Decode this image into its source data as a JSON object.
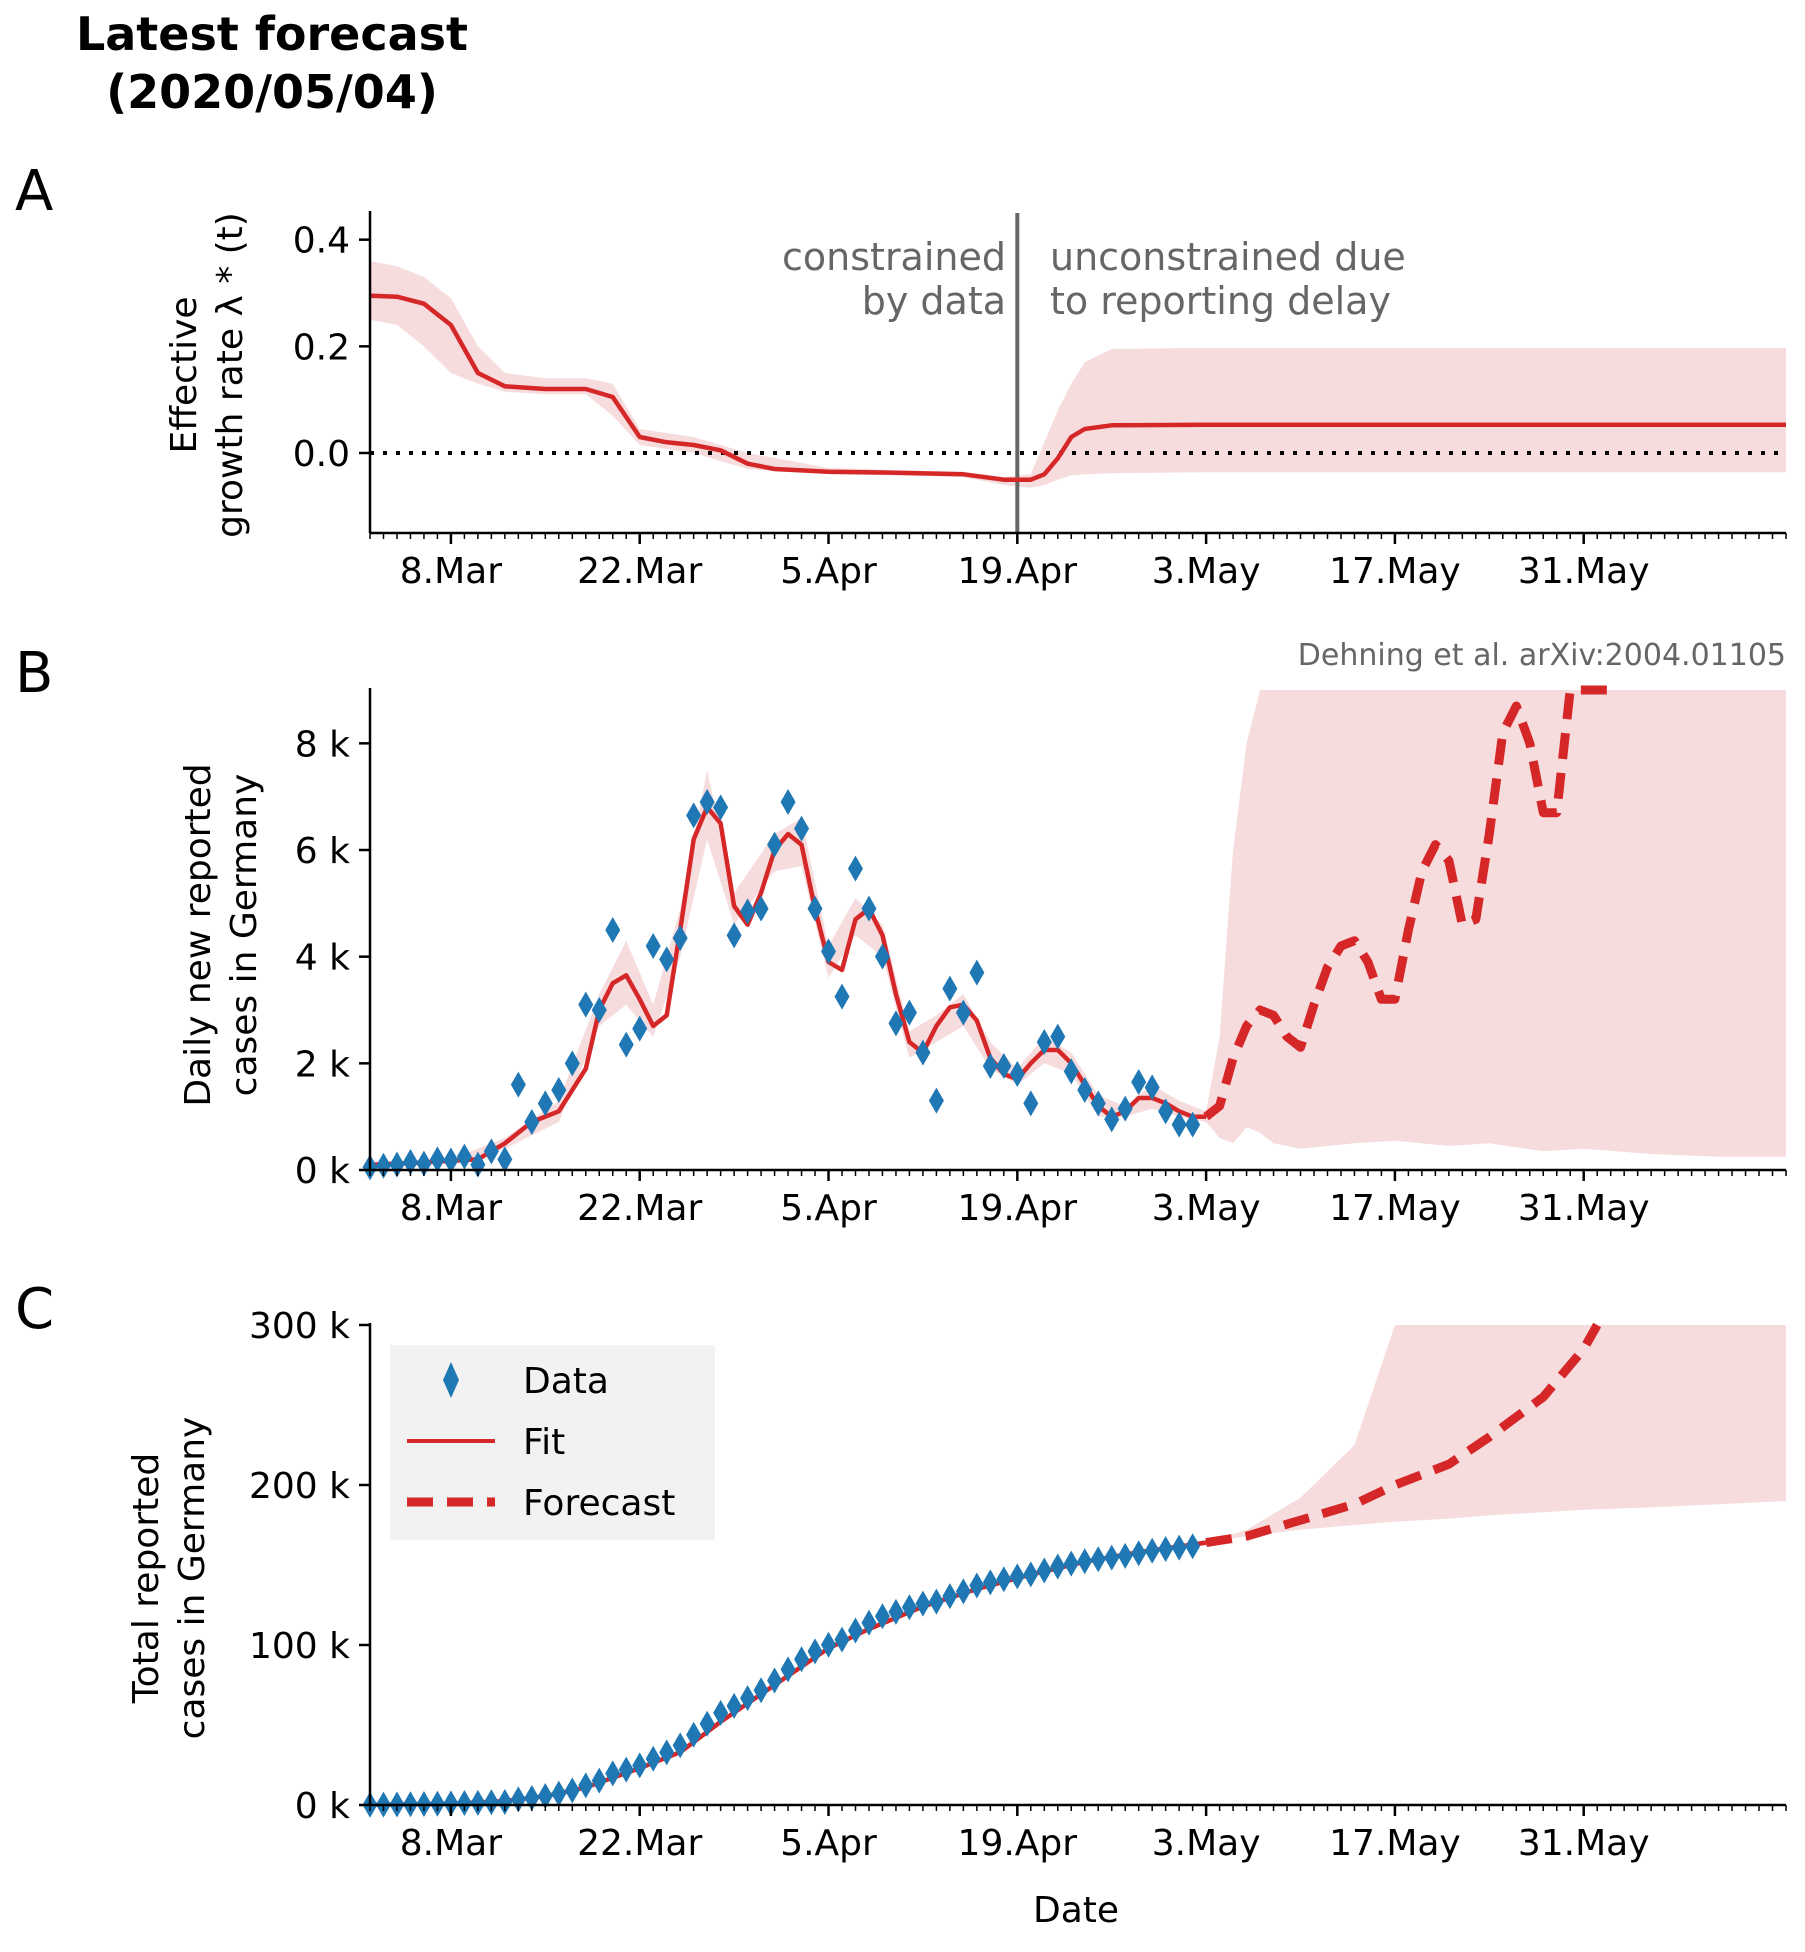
{
  "figure": {
    "title_line1": "Latest forecast",
    "title_line2": "(2020/05/04)",
    "credit": "Dehning et al. arXiv:2004.01105"
  },
  "colors": {
    "fit": "#d62728",
    "band": "#f7dcde",
    "data": "#1f77b4",
    "divider": "#666666",
    "annotation": "#666666"
  },
  "x_axis": {
    "start_date": "2020-03-02",
    "end_date": "2020-06-15",
    "major_tick_dates": [
      "2020-03-08",
      "2020-03-22",
      "2020-04-05",
      "2020-04-19",
      "2020-05-03",
      "2020-05-17",
      "2020-05-31"
    ],
    "major_tick_labels": [
      "8.Mar",
      "22.Mar",
      "5.Apr",
      "19.Apr",
      "3.May",
      "17.May",
      "31.May"
    ],
    "minor_ticks": "daily",
    "label": "Date"
  },
  "legend": {
    "data_label": "Data",
    "fit_label": "Fit",
    "forecast_label": "Forecast"
  },
  "chart_data": [
    {
      "panel": "A",
      "type": "line",
      "ylabel_line1": "Effective",
      "ylabel_line2": "growth rate λ * (t)",
      "ylim": [
        -0.15,
        0.45
      ],
      "yticks": [
        0.0,
        0.2,
        0.4
      ],
      "ytick_labels": [
        "0.0",
        "0.2",
        "0.4"
      ],
      "divider_date": "2020-04-19",
      "annotation_left": [
        "constrained",
        "by data"
      ],
      "annotation_right": [
        "unconstrained due",
        "to reporting delay"
      ],
      "reference_line": 0.0,
      "series": [
        {
          "name": "Fit",
          "x": [
            "2020-03-02",
            "2020-03-04",
            "2020-03-06",
            "2020-03-08",
            "2020-03-10",
            "2020-03-12",
            "2020-03-15",
            "2020-03-18",
            "2020-03-20",
            "2020-03-22",
            "2020-03-24",
            "2020-03-26",
            "2020-03-28",
            "2020-03-30",
            "2020-04-01",
            "2020-04-05",
            "2020-04-10",
            "2020-04-15",
            "2020-04-18",
            "2020-04-20",
            "2020-04-21",
            "2020-04-22",
            "2020-04-23",
            "2020-04-24",
            "2020-04-26",
            "2020-05-03",
            "2020-05-17",
            "2020-05-31",
            "2020-06-15"
          ],
          "y": [
            0.295,
            0.293,
            0.28,
            0.24,
            0.15,
            0.125,
            0.12,
            0.12,
            0.105,
            0.03,
            0.02,
            0.015,
            0.005,
            -0.02,
            -0.03,
            -0.035,
            -0.037,
            -0.04,
            -0.05,
            -0.05,
            -0.04,
            -0.01,
            0.03,
            0.045,
            0.052,
            0.053,
            0.053,
            0.053,
            0.053
          ]
        }
      ],
      "band": {
        "x": [
          "2020-03-02",
          "2020-03-04",
          "2020-03-06",
          "2020-03-08",
          "2020-03-10",
          "2020-03-12",
          "2020-03-15",
          "2020-03-18",
          "2020-03-20",
          "2020-03-22",
          "2020-03-26",
          "2020-03-30",
          "2020-04-05",
          "2020-04-10",
          "2020-04-15",
          "2020-04-18",
          "2020-04-20",
          "2020-04-21",
          "2020-04-22",
          "2020-04-23",
          "2020-04-24",
          "2020-04-26",
          "2020-05-03",
          "2020-05-17",
          "2020-05-31",
          "2020-06-15"
        ],
        "lower": [
          0.25,
          0.24,
          0.2,
          0.15,
          0.13,
          0.115,
          0.11,
          0.11,
          0.07,
          0.015,
          0.0,
          -0.03,
          -0.04,
          -0.042,
          -0.045,
          -0.06,
          -0.065,
          -0.06,
          -0.05,
          -0.042,
          -0.04,
          -0.038,
          -0.036,
          -0.036,
          -0.036,
          -0.036
        ],
        "upper": [
          0.36,
          0.35,
          0.33,
          0.29,
          0.2,
          0.15,
          0.14,
          0.14,
          0.13,
          0.045,
          0.03,
          0.0,
          -0.028,
          -0.032,
          -0.035,
          -0.045,
          -0.04,
          0.02,
          0.08,
          0.13,
          0.17,
          0.195,
          0.197,
          0.197,
          0.197,
          0.197
        ]
      }
    },
    {
      "panel": "B",
      "type": "line",
      "ylabel_line1": "Daily new reported",
      "ylabel_line2": "cases in Germany",
      "ylim": [
        0,
        9000
      ],
      "yticks": [
        0,
        2000,
        4000,
        6000,
        8000
      ],
      "ytick_labels": [
        "0 k",
        "2 k",
        "4 k",
        "6 k",
        "8 k"
      ],
      "data_points": {
        "name": "Data",
        "x": [
          "2020-03-02",
          "2020-03-03",
          "2020-03-04",
          "2020-03-05",
          "2020-03-06",
          "2020-03-07",
          "2020-03-08",
          "2020-03-09",
          "2020-03-10",
          "2020-03-11",
          "2020-03-12",
          "2020-03-13",
          "2020-03-14",
          "2020-03-15",
          "2020-03-16",
          "2020-03-17",
          "2020-03-18",
          "2020-03-19",
          "2020-03-20",
          "2020-03-21",
          "2020-03-22",
          "2020-03-23",
          "2020-03-24",
          "2020-03-25",
          "2020-03-26",
          "2020-03-27",
          "2020-03-28",
          "2020-03-29",
          "2020-03-30",
          "2020-03-31",
          "2020-04-01",
          "2020-04-02",
          "2020-04-03",
          "2020-04-04",
          "2020-04-05",
          "2020-04-06",
          "2020-04-07",
          "2020-04-08",
          "2020-04-09",
          "2020-04-10",
          "2020-04-11",
          "2020-04-12",
          "2020-04-13",
          "2020-04-14",
          "2020-04-15",
          "2020-04-16",
          "2020-04-17",
          "2020-04-18",
          "2020-04-19",
          "2020-04-20",
          "2020-04-21",
          "2020-04-22",
          "2020-04-23",
          "2020-04-24",
          "2020-04-25",
          "2020-04-26",
          "2020-04-27",
          "2020-04-28",
          "2020-04-29",
          "2020-04-30",
          "2020-05-01",
          "2020-05-02"
        ],
        "y": [
          50,
          80,
          100,
          150,
          120,
          200,
          180,
          250,
          100,
          350,
          200,
          1600,
          900,
          1250,
          1500,
          2000,
          3100,
          3000,
          4500,
          2350,
          2650,
          4200,
          3950,
          4350,
          6650,
          6900,
          6800,
          4400,
          4850,
          4900,
          6100,
          6900,
          6400,
          4900,
          4100,
          3250,
          5650,
          4900,
          4000,
          2750,
          2950,
          2200,
          1300,
          3400,
          2950,
          3700,
          1950,
          1950,
          1800,
          1250,
          2400,
          2500,
          1850,
          1500,
          1250,
          950,
          1150,
          1650,
          1550,
          1100,
          850,
          850
        ]
      },
      "fit": {
        "name": "Fit",
        "x": [
          "2020-03-02",
          "2020-03-05",
          "2020-03-08",
          "2020-03-10",
          "2020-03-12",
          "2020-03-14",
          "2020-03-16",
          "2020-03-18",
          "2020-03-19",
          "2020-03-20",
          "2020-03-21",
          "2020-03-22",
          "2020-03-23",
          "2020-03-24",
          "2020-03-25",
          "2020-03-26",
          "2020-03-27",
          "2020-03-28",
          "2020-03-29",
          "2020-03-30",
          "2020-03-31",
          "2020-04-01",
          "2020-04-02",
          "2020-04-03",
          "2020-04-04",
          "2020-04-05",
          "2020-04-06",
          "2020-04-07",
          "2020-04-08",
          "2020-04-09",
          "2020-04-10",
          "2020-04-11",
          "2020-04-12",
          "2020-04-13",
          "2020-04-14",
          "2020-04-15",
          "2020-04-16",
          "2020-04-17",
          "2020-04-18",
          "2020-04-19",
          "2020-04-20",
          "2020-04-21",
          "2020-04-22",
          "2020-04-23",
          "2020-04-24",
          "2020-04-25",
          "2020-04-26",
          "2020-04-27",
          "2020-04-28",
          "2020-04-29",
          "2020-04-30",
          "2020-05-01",
          "2020-05-02",
          "2020-05-03"
        ],
        "y": [
          100,
          130,
          170,
          200,
          500,
          900,
          1100,
          1900,
          3000,
          3500,
          3650,
          3200,
          2700,
          2900,
          4500,
          6200,
          6800,
          6500,
          4950,
          4600,
          5200,
          6000,
          6300,
          6100,
          4900,
          3900,
          3750,
          4700,
          4900,
          4400,
          3300,
          2400,
          2200,
          2700,
          3050,
          3100,
          2800,
          2100,
          1800,
          1700,
          2000,
          2250,
          2250,
          2000,
          1600,
          1200,
          1000,
          1100,
          1350,
          1350,
          1250,
          1100,
          1000,
          1000
        ]
      },
      "forecast": {
        "name": "Forecast",
        "x": [
          "2020-05-03",
          "2020-05-04",
          "2020-05-05",
          "2020-05-06",
          "2020-05-07",
          "2020-05-08",
          "2020-05-09",
          "2020-05-10",
          "2020-05-11",
          "2020-05-12",
          "2020-05-13",
          "2020-05-14",
          "2020-05-15",
          "2020-05-16",
          "2020-05-17",
          "2020-05-18",
          "2020-05-19",
          "2020-05-20",
          "2020-05-21",
          "2020-05-22",
          "2020-05-23",
          "2020-05-24",
          "2020-05-25",
          "2020-05-26",
          "2020-05-27",
          "2020-05-28",
          "2020-05-29",
          "2020-05-30",
          "2020-05-31",
          "2020-06-01",
          "2020-06-02"
        ],
        "y": [
          1000,
          1200,
          2100,
          2700,
          3000,
          2900,
          2500,
          2300,
          3100,
          3800,
          4200,
          4300,
          3900,
          3200,
          3200,
          4500,
          5600,
          6100,
          5800,
          4600,
          4700,
          6300,
          8200,
          8700,
          8000,
          6700,
          6700,
          9100,
          9300,
          9500,
          9500
        ]
      },
      "band": {
        "x": [
          "2020-03-02",
          "2020-03-08",
          "2020-03-12",
          "2020-03-16",
          "2020-03-19",
          "2020-03-21",
          "2020-03-23",
          "2020-03-25",
          "2020-03-27",
          "2020-03-29",
          "2020-04-01",
          "2020-04-03",
          "2020-04-05",
          "2020-04-07",
          "2020-04-09",
          "2020-04-11",
          "2020-04-13",
          "2020-04-15",
          "2020-04-17",
          "2020-04-19",
          "2020-04-21",
          "2020-04-23",
          "2020-04-25",
          "2020-04-27",
          "2020-04-29",
          "2020-05-01",
          "2020-05-03",
          "2020-05-04",
          "2020-05-05",
          "2020-05-06",
          "2020-05-07",
          "2020-05-08",
          "2020-05-10",
          "2020-05-14",
          "2020-05-17",
          "2020-05-21",
          "2020-05-24",
          "2020-05-28",
          "2020-05-31",
          "2020-06-05",
          "2020-06-10",
          "2020-06-15"
        ],
        "lower": [
          80,
          140,
          400,
          900,
          2700,
          3100,
          2500,
          4000,
          6200,
          4600,
          5600,
          5700,
          3600,
          4400,
          4000,
          2100,
          2400,
          2700,
          1900,
          1600,
          2000,
          1800,
          1000,
          1000,
          1150,
          1000,
          900,
          600,
          500,
          800,
          700,
          500,
          400,
          500,
          550,
          450,
          500,
          350,
          400,
          300,
          250,
          250
        ],
        "upper": [
          120,
          200,
          600,
          1300,
          3300,
          4300,
          3100,
          4900,
          7500,
          5200,
          6300,
          6600,
          4200,
          5100,
          4600,
          2600,
          2900,
          3300,
          2400,
          1900,
          2500,
          2200,
          1400,
          1200,
          1600,
          1300,
          1100,
          2500,
          6000,
          8000,
          9000,
          9000,
          9000,
          9000,
          9000,
          9000,
          9000,
          9000,
          9000,
          9000,
          9000,
          9000
        ]
      }
    },
    {
      "panel": "C",
      "type": "line",
      "ylabel_line1": "Total reported",
      "ylabel_line2": "cases in Germany",
      "ylim": [
        0,
        300000
      ],
      "yticks": [
        0,
        100000,
        200000,
        300000
      ],
      "ytick_labels": [
        "0 k",
        "100 k",
        "200 k",
        "300 k"
      ],
      "data_points": {
        "name": "Data",
        "x": [
          "2020-03-02",
          "2020-03-03",
          "2020-03-04",
          "2020-03-05",
          "2020-03-06",
          "2020-03-07",
          "2020-03-08",
          "2020-03-09",
          "2020-03-10",
          "2020-03-11",
          "2020-03-12",
          "2020-03-13",
          "2020-03-14",
          "2020-03-15",
          "2020-03-16",
          "2020-03-17",
          "2020-03-18",
          "2020-03-19",
          "2020-03-20",
          "2020-03-21",
          "2020-03-22",
          "2020-03-23",
          "2020-03-24",
          "2020-03-25",
          "2020-03-26",
          "2020-03-27",
          "2020-03-28",
          "2020-03-29",
          "2020-03-30",
          "2020-03-31",
          "2020-04-01",
          "2020-04-02",
          "2020-04-03",
          "2020-04-04",
          "2020-04-05",
          "2020-04-06",
          "2020-04-07",
          "2020-04-08",
          "2020-04-09",
          "2020-04-10",
          "2020-04-11",
          "2020-04-12",
          "2020-04-13",
          "2020-04-14",
          "2020-04-15",
          "2020-04-16",
          "2020-04-17",
          "2020-04-18",
          "2020-04-19",
          "2020-04-20",
          "2020-04-21",
          "2020-04-22",
          "2020-04-23",
          "2020-04-24",
          "2020-04-25",
          "2020-04-26",
          "2020-04-27",
          "2020-04-28",
          "2020-04-29",
          "2020-04-30",
          "2020-05-01",
          "2020-05-02"
        ],
        "y": [
          150,
          230,
          330,
          480,
          600,
          800,
          980,
          1230,
          1330,
          1680,
          1880,
          3480,
          4380,
          5630,
          7130,
          9130,
          12230,
          15230,
          19730,
          22080,
          24730,
          28930,
          32880,
          37230,
          43880,
          50780,
          57580,
          61980,
          66830,
          71730,
          77830,
          84730,
          91130,
          96030,
          100130,
          103380,
          109030,
          113930,
          117930,
          120680,
          123630,
          125830,
          127130,
          130530,
          133480,
          137180,
          139130,
          141080,
          142880,
          144130,
          146530,
          149030,
          150880,
          152380,
          153630,
          154580,
          155730,
          157380,
          158930,
          160030,
          160880,
          161730
        ]
      },
      "fit": {
        "name": "Fit",
        "x": [
          "2020-03-02",
          "2020-03-08",
          "2020-03-12",
          "2020-03-15",
          "2020-03-18",
          "2020-03-20",
          "2020-03-22",
          "2020-03-25",
          "2020-03-28",
          "2020-04-01",
          "2020-04-05",
          "2020-04-08",
          "2020-04-12",
          "2020-04-16",
          "2020-04-20",
          "2020-04-24",
          "2020-04-28",
          "2020-05-03"
        ],
        "y": [
          100,
          800,
          2500,
          5500,
          11000,
          17000,
          23000,
          33000,
          52000,
          75000,
          98000,
          110000,
          124000,
          135000,
          144000,
          152000,
          158000,
          164000
        ]
      },
      "forecast": {
        "name": "Forecast",
        "x": [
          "2020-05-03",
          "2020-05-06",
          "2020-05-10",
          "2020-05-14",
          "2020-05-17",
          "2020-05-21",
          "2020-05-24",
          "2020-05-28",
          "2020-05-31",
          "2020-06-01"
        ],
        "y": [
          164000,
          168000,
          178000,
          188000,
          200000,
          213000,
          230000,
          255000,
          285000,
          300000
        ]
      },
      "band": {
        "x": [
          "2020-05-03",
          "2020-05-06",
          "2020-05-10",
          "2020-05-14",
          "2020-05-17",
          "2020-05-21",
          "2020-05-24",
          "2020-05-28",
          "2020-05-31",
          "2020-06-05",
          "2020-06-10",
          "2020-06-15"
        ],
        "lower": [
          164000,
          168000,
          172000,
          175000,
          177000,
          179000,
          181000,
          183000,
          184500,
          186000,
          188000,
          190000
        ],
        "upper": [
          164000,
          172000,
          192000,
          225000,
          300000,
          300000,
          300000,
          300000,
          300000,
          300000,
          300000,
          300000
        ]
      }
    }
  ]
}
